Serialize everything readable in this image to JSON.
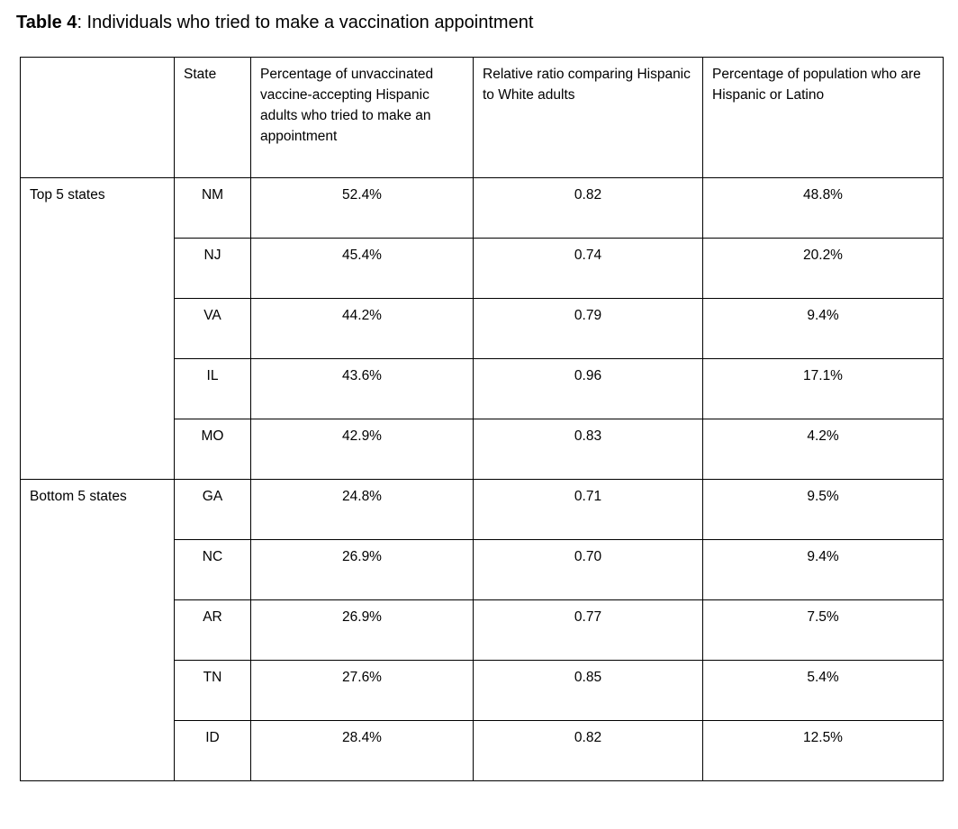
{
  "page": {
    "background_color": "#ffffff",
    "text_color": "#000000",
    "border_color": "#000000"
  },
  "title": {
    "bold": "Table 4",
    "rest": ": Individuals who tried to make a vaccination appointment"
  },
  "table": {
    "columns": [
      "",
      "State",
      "Percentage of unvaccinated vaccine-accepting Hispanic adults who tried to make an appointment",
      "Relative ratio comparing Hispanic to White adults",
      "Percentage of population who are Hispanic or Latino"
    ],
    "groups": [
      {
        "label": "Top 5 states",
        "rows": [
          {
            "state": "NM",
            "pct_tried": "52.4%",
            "relative_ratio": "0.82",
            "pct_hispanic_pop": "48.8%"
          },
          {
            "state": "NJ",
            "pct_tried": "45.4%",
            "relative_ratio": "0.74",
            "pct_hispanic_pop": "20.2%"
          },
          {
            "state": "VA",
            "pct_tried": "44.2%",
            "relative_ratio": "0.79",
            "pct_hispanic_pop": "9.4%"
          },
          {
            "state": "IL",
            "pct_tried": "43.6%",
            "relative_ratio": "0.96",
            "pct_hispanic_pop": "17.1%"
          },
          {
            "state": "MO",
            "pct_tried": "42.9%",
            "relative_ratio": "0.83",
            "pct_hispanic_pop": "4.2%"
          }
        ]
      },
      {
        "label": "Bottom 5 states",
        "rows": [
          {
            "state": "GA",
            "pct_tried": "24.8%",
            "relative_ratio": "0.71",
            "pct_hispanic_pop": "9.5%"
          },
          {
            "state": "NC",
            "pct_tried": "26.9%",
            "relative_ratio": "0.70",
            "pct_hispanic_pop": "9.4%"
          },
          {
            "state": "AR",
            "pct_tried": "26.9%",
            "relative_ratio": "0.77",
            "pct_hispanic_pop": "7.5%"
          },
          {
            "state": "TN",
            "pct_tried": "27.6%",
            "relative_ratio": "0.85",
            "pct_hispanic_pop": "5.4%"
          },
          {
            "state": "ID",
            "pct_tried": "28.4%",
            "relative_ratio": "0.82",
            "pct_hispanic_pop": "12.5%"
          }
        ]
      }
    ]
  }
}
